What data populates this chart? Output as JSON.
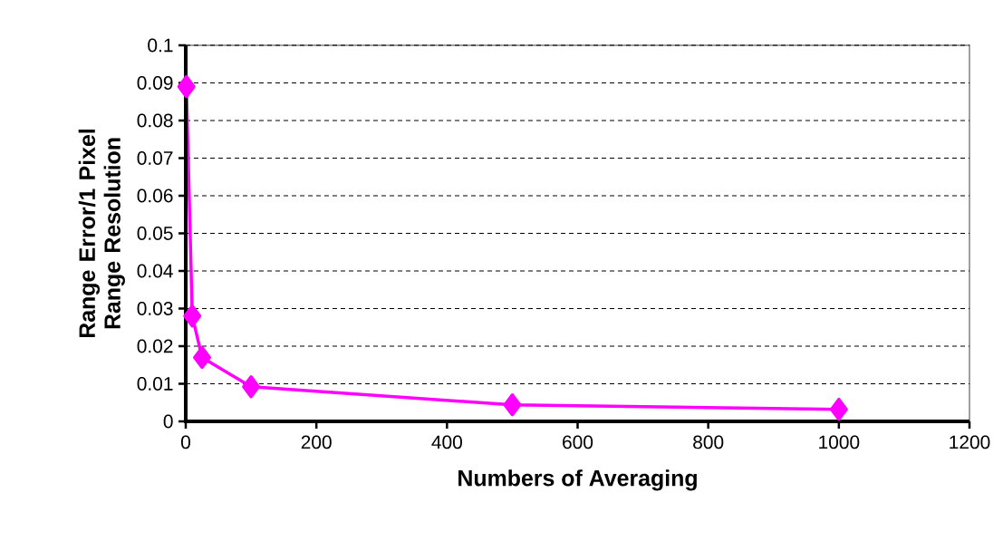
{
  "chart_data": {
    "type": "line",
    "xlabel": "Numbers of Averaging",
    "ylabel": "Range Error/1 Pixel Range Resolution",
    "x": [
      1,
      10,
      25,
      100,
      500,
      1000
    ],
    "series": [
      {
        "color": "#ff00ff",
        "values": [
          0.089,
          0.028,
          0.017,
          0.0092,
          0.0044,
          0.0032
        ]
      }
    ],
    "xlim": [
      0,
      1200
    ],
    "xticks": [
      0,
      200,
      400,
      600,
      800,
      1000,
      1200
    ],
    "ylim": [
      0,
      0.1
    ],
    "yticks": [
      0,
      0.01,
      0.02,
      0.03,
      0.04,
      0.05,
      0.06,
      0.07,
      0.08,
      0.09,
      0.1
    ],
    "grid": "y",
    "marker": "diamond",
    "line_style": "solid"
  }
}
